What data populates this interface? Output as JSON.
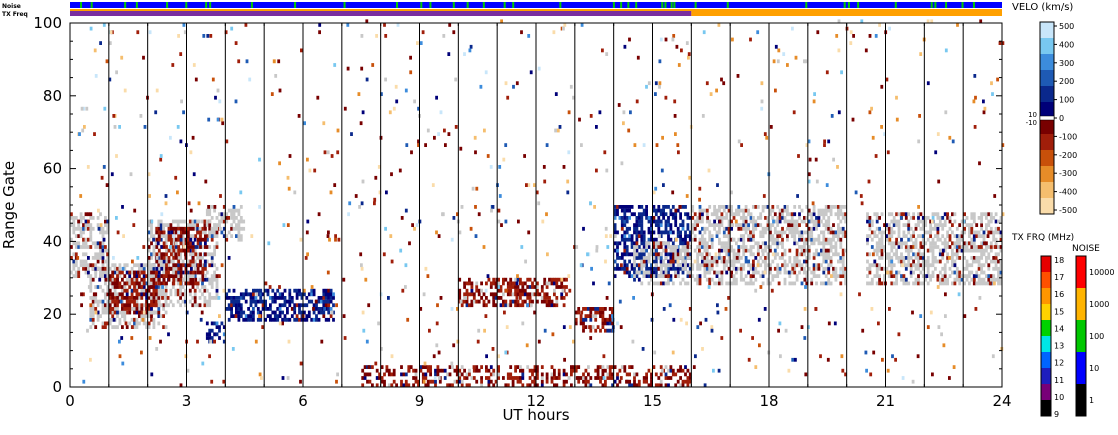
{
  "header": {
    "noise_label": "Noise",
    "txfreq_label": "TX Freq"
  },
  "chart_data": {
    "type": "heatmap",
    "xlabel": "UT hours",
    "ylabel": "Range Gate",
    "x_ticks": [
      "0",
      "3",
      "6",
      "9",
      "12",
      "15",
      "18",
      "21",
      "24"
    ],
    "y_ticks": [
      "0",
      "20",
      "40",
      "60",
      "80",
      "100"
    ],
    "xlim": [
      0,
      24
    ],
    "ylim": [
      0,
      100
    ],
    "scan_boundaries_hours": [
      1,
      2,
      3,
      4,
      5,
      6,
      7,
      8,
      9,
      10,
      11,
      12,
      13,
      14,
      15,
      16,
      17,
      18,
      19,
      20,
      21,
      22,
      23
    ],
    "ground_scatter_color": "#c8c8c8",
    "velocity_colorbar": {
      "title": "VELO (km/s)",
      "ticks": [
        "500",
        "400",
        "300",
        "200",
        "100",
        "0",
        "-100",
        "-200",
        "-300",
        "-400",
        "-500"
      ],
      "small_labels": [
        "10",
        "-10"
      ],
      "colors": [
        "#c8e6fa",
        "#78c8f0",
        "#3c8cdc",
        "#1e5ab4",
        "#0a288c",
        "#000078",
        "#780000",
        "#a01e0a",
        "#c8500a",
        "#e68c28",
        "#f5be6e",
        "#fadcaa"
      ]
    },
    "txfreq_colorbar": {
      "title": "TX FRQ (MHz)",
      "ticks": [
        "18",
        "17",
        "16",
        "15",
        "14",
        "13",
        "12",
        "11",
        "10",
        "9"
      ],
      "colors": [
        "#e60000",
        "#ff5000",
        "#ff9600",
        "#ffd200",
        "#00d200",
        "#00e6e6",
        "#0064ff",
        "#1e1ebe",
        "#780078",
        "#000000"
      ]
    },
    "noise_colorbar": {
      "title": "NOISE",
      "ticks": [
        "10000",
        "1000",
        "100",
        "10",
        "1"
      ],
      "colors": [
        "#ff0000",
        "#ffb400",
        "#00c800",
        "#0000ff",
        "#000000"
      ]
    },
    "echo_regions": [
      {
        "t0": 0.0,
        "t1": 1.0,
        "g0": 30,
        "g1": 48,
        "dominant": "ground"
      },
      {
        "t0": 0.5,
        "t1": 2.5,
        "g0": 16,
        "g1": 34,
        "dominant": "ground"
      },
      {
        "t0": 2.0,
        "t1": 3.8,
        "g0": 22,
        "g1": 46,
        "dominant": "ground"
      },
      {
        "t0": 3.5,
        "t1": 4.5,
        "g0": 40,
        "g1": 50,
        "dominant": "ground"
      },
      {
        "t0": 1.0,
        "t1": 2.2,
        "g0": 20,
        "g1": 32,
        "dominant": "negative"
      },
      {
        "t0": 2.2,
        "t1": 3.5,
        "g0": 28,
        "g1": 44,
        "dominant": "negative"
      },
      {
        "t0": 3.5,
        "t1": 4.0,
        "g0": 12,
        "g1": 18,
        "dominant": "positive"
      },
      {
        "t0": 4.0,
        "t1": 6.8,
        "g0": 18,
        "g1": 27,
        "dominant": "positive"
      },
      {
        "t0": 10.0,
        "t1": 12.8,
        "g0": 22,
        "g1": 30,
        "dominant": "negative"
      },
      {
        "t0": 13.0,
        "t1": 14.0,
        "g0": 15,
        "g1": 22,
        "dominant": "negative"
      },
      {
        "t0": 14.0,
        "t1": 16.0,
        "g0": 30,
        "g1": 50,
        "dominant": "positive"
      },
      {
        "t0": 14.5,
        "t1": 16.0,
        "g0": 28,
        "g1": 40,
        "dominant": "ground"
      },
      {
        "t0": 16.0,
        "t1": 20.0,
        "g0": 28,
        "g1": 50,
        "dominant": "ground"
      },
      {
        "t0": 20.5,
        "t1": 24.0,
        "g0": 28,
        "g1": 48,
        "dominant": "ground"
      },
      {
        "t0": 7.5,
        "t1": 16.0,
        "g0": 0,
        "g1": 6,
        "dominant": "negative"
      }
    ]
  }
}
